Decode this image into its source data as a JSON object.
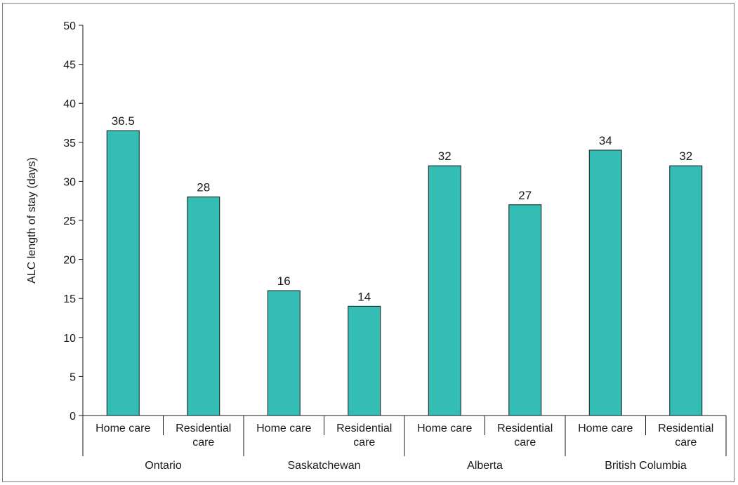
{
  "chart_data": {
    "type": "bar",
    "ylabel": "ALC length of stay (days)",
    "xlabel": "",
    "ylim": [
      0,
      50
    ],
    "yticks": [
      0,
      5,
      10,
      15,
      20,
      25,
      30,
      35,
      40,
      45,
      50
    ],
    "groups": [
      {
        "name": "Ontario",
        "categories": [
          "Home care",
          "Residential care"
        ],
        "values": [
          36.5,
          28
        ]
      },
      {
        "name": "Saskatchewan",
        "categories": [
          "Home care",
          "Residential care"
        ],
        "values": [
          16,
          14
        ]
      },
      {
        "name": "Alberta",
        "categories": [
          "Home care",
          "Residential care"
        ],
        "values": [
          32,
          27
        ]
      },
      {
        "name": "British Columbia",
        "categories": [
          "Home care",
          "Residential care"
        ],
        "values": [
          34,
          32
        ]
      }
    ],
    "category_labels": {
      "Home care": [
        "Home care"
      ],
      "Residential care": [
        "Residential",
        "care"
      ]
    },
    "data_labels": [
      "36.5",
      "28",
      "16",
      "14",
      "32",
      "27",
      "34",
      "32"
    ],
    "bar_color": "#33bdb4",
    "bar_edge_color": "#1a1a1a",
    "grid": false,
    "legend": "none"
  }
}
